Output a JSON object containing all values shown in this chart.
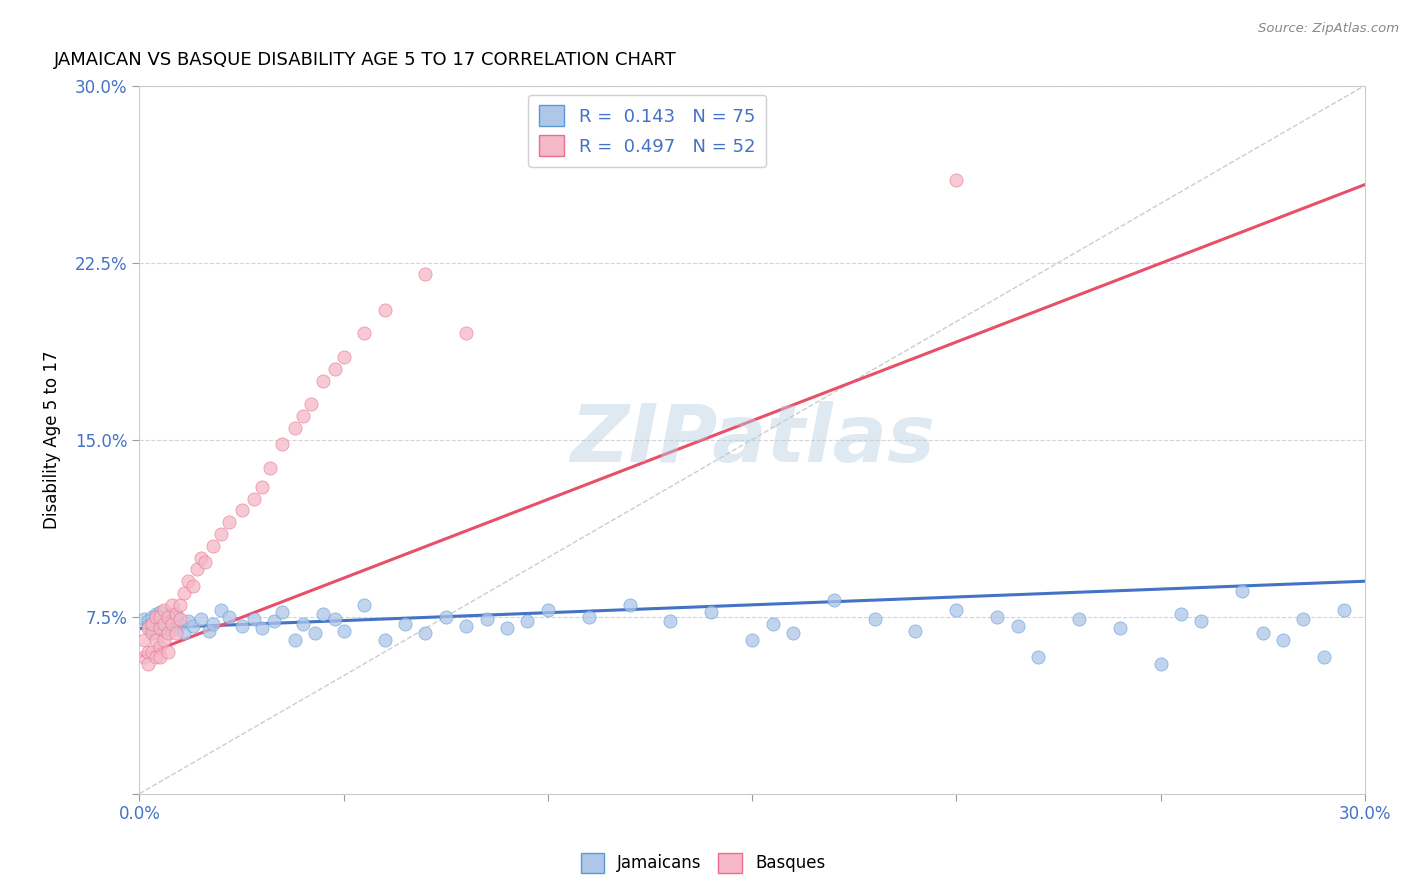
{
  "title": "JAMAICAN VS BASQUE DISABILITY AGE 5 TO 17 CORRELATION CHART",
  "source": "Source: ZipAtlas.com",
  "ylabel": "Disability Age 5 to 17",
  "xlim": [
    0.0,
    0.3
  ],
  "ylim": [
    0.0,
    0.3
  ],
  "xticks": [
    0.0,
    0.05,
    0.1,
    0.15,
    0.2,
    0.25,
    0.3
  ],
  "yticks": [
    0.0,
    0.075,
    0.15,
    0.225,
    0.3
  ],
  "jamaicans_fill": "#aec6e8",
  "jamaicans_edge": "#5b9bd5",
  "basques_fill": "#f4b8c8",
  "basques_edge": "#e8708a",
  "jamaicans_line_color": "#4472c4",
  "basques_line_color": "#e8506a",
  "diagonal_color": "#c0c0c0",
  "R_jamaicans": 0.143,
  "N_jamaicans": 75,
  "R_basques": 0.497,
  "N_basques": 52,
  "watermark": "ZIPatlas",
  "watermark_color": "#b8cfe0",
  "legend_color": "#4472c4",
  "jamaicans_x": [
    0.001,
    0.002,
    0.002,
    0.003,
    0.003,
    0.003,
    0.004,
    0.004,
    0.004,
    0.005,
    0.005,
    0.005,
    0.006,
    0.006,
    0.007,
    0.007,
    0.008,
    0.008,
    0.009,
    0.009,
    0.01,
    0.011,
    0.012,
    0.013,
    0.015,
    0.017,
    0.018,
    0.02,
    0.022,
    0.025,
    0.028,
    0.03,
    0.033,
    0.035,
    0.038,
    0.04,
    0.043,
    0.045,
    0.048,
    0.05,
    0.055,
    0.06,
    0.065,
    0.07,
    0.075,
    0.08,
    0.085,
    0.09,
    0.095,
    0.1,
    0.11,
    0.12,
    0.13,
    0.14,
    0.15,
    0.155,
    0.16,
    0.17,
    0.18,
    0.19,
    0.2,
    0.21,
    0.215,
    0.22,
    0.23,
    0.24,
    0.25,
    0.255,
    0.26,
    0.27,
    0.275,
    0.28,
    0.285,
    0.29,
    0.295
  ],
  "jamaicans_y": [
    0.074,
    0.073,
    0.071,
    0.069,
    0.072,
    0.075,
    0.068,
    0.074,
    0.076,
    0.07,
    0.073,
    0.077,
    0.072,
    0.069,
    0.074,
    0.071,
    0.076,
    0.073,
    0.07,
    0.075,
    0.072,
    0.068,
    0.073,
    0.071,
    0.074,
    0.069,
    0.072,
    0.078,
    0.075,
    0.071,
    0.074,
    0.07,
    0.073,
    0.077,
    0.065,
    0.072,
    0.068,
    0.076,
    0.074,
    0.069,
    0.08,
    0.065,
    0.072,
    0.068,
    0.075,
    0.071,
    0.074,
    0.07,
    0.073,
    0.078,
    0.075,
    0.08,
    0.073,
    0.077,
    0.065,
    0.072,
    0.068,
    0.082,
    0.074,
    0.069,
    0.078,
    0.075,
    0.071,
    0.058,
    0.074,
    0.07,
    0.055,
    0.076,
    0.073,
    0.086,
    0.068,
    0.065,
    0.074,
    0.058,
    0.078
  ],
  "basques_x": [
    0.001,
    0.001,
    0.002,
    0.002,
    0.002,
    0.003,
    0.003,
    0.003,
    0.004,
    0.004,
    0.004,
    0.005,
    0.005,
    0.005,
    0.005,
    0.006,
    0.006,
    0.006,
    0.007,
    0.007,
    0.007,
    0.008,
    0.008,
    0.009,
    0.009,
    0.01,
    0.01,
    0.011,
    0.012,
    0.013,
    0.014,
    0.015,
    0.016,
    0.018,
    0.02,
    0.022,
    0.025,
    0.028,
    0.03,
    0.032,
    0.035,
    0.038,
    0.04,
    0.042,
    0.045,
    0.048,
    0.05,
    0.055,
    0.06,
    0.07,
    0.08,
    0.2
  ],
  "basques_y": [
    0.065,
    0.058,
    0.07,
    0.06,
    0.055,
    0.068,
    0.072,
    0.06,
    0.058,
    0.075,
    0.065,
    0.07,
    0.062,
    0.075,
    0.058,
    0.072,
    0.078,
    0.065,
    0.068,
    0.075,
    0.06,
    0.072,
    0.08,
    0.068,
    0.076,
    0.08,
    0.074,
    0.085,
    0.09,
    0.088,
    0.095,
    0.1,
    0.098,
    0.105,
    0.11,
    0.115,
    0.12,
    0.125,
    0.13,
    0.138,
    0.148,
    0.155,
    0.16,
    0.165,
    0.175,
    0.18,
    0.185,
    0.195,
    0.205,
    0.22,
    0.195,
    0.26
  ],
  "jamaicans_trend": [
    0.07,
    0.09
  ],
  "basques_trend": [
    0.058,
    0.258
  ],
  "trend_x": [
    0.0,
    0.3
  ]
}
